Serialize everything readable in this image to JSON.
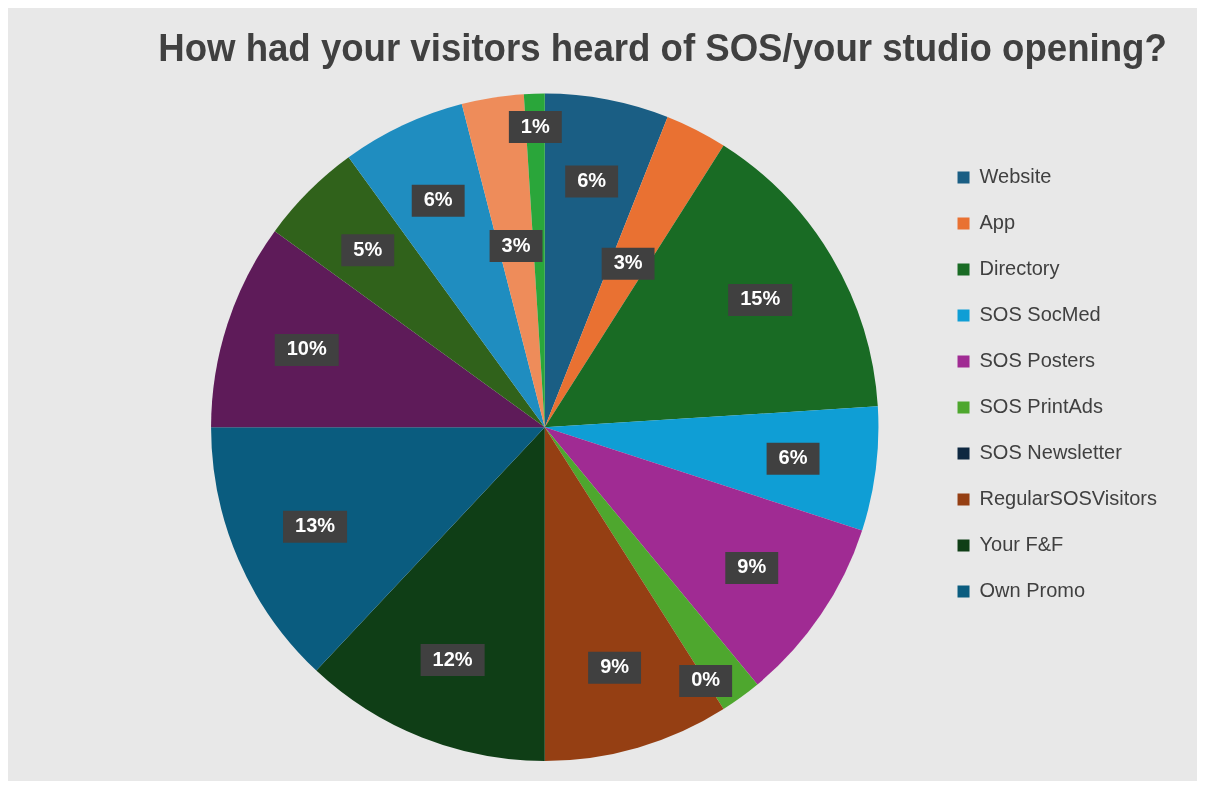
{
  "chart_data": {
    "type": "pie",
    "title": "How had your visitors heard of SOS/your studio opening?",
    "categories": [
      "Website",
      "App",
      "Directory",
      "SOS SocMed",
      "SOS Posters",
      "SOS PrintAds",
      "SOS Newsletter",
      "RegularSOSVisitors",
      "Your F&F",
      "Own Promo",
      null,
      null,
      null,
      null,
      null
    ],
    "values": [
      6,
      3,
      15,
      6,
      9,
      2,
      0,
      9,
      12,
      13,
      10,
      5,
      6,
      3,
      1
    ],
    "value_labels": [
      "6%",
      "3%",
      "15%",
      "6%",
      "9%",
      null,
      "0%",
      "9%",
      "12%",
      "13%",
      "10%",
      "5%",
      "6%",
      "3%",
      "1%"
    ],
    "colors": [
      "#1a5e84",
      "#e97132",
      "#196b24",
      "#0f9ed5",
      "#a02b93",
      "#4ea72e",
      "#0e2841",
      "#953f13",
      "#0f3e16",
      "#0a5c7f",
      "#5e1b59",
      "#30621b",
      "#1f8dc0",
      "#ee8c5a",
      "#2aa63a"
    ],
    "legend": "right"
  }
}
